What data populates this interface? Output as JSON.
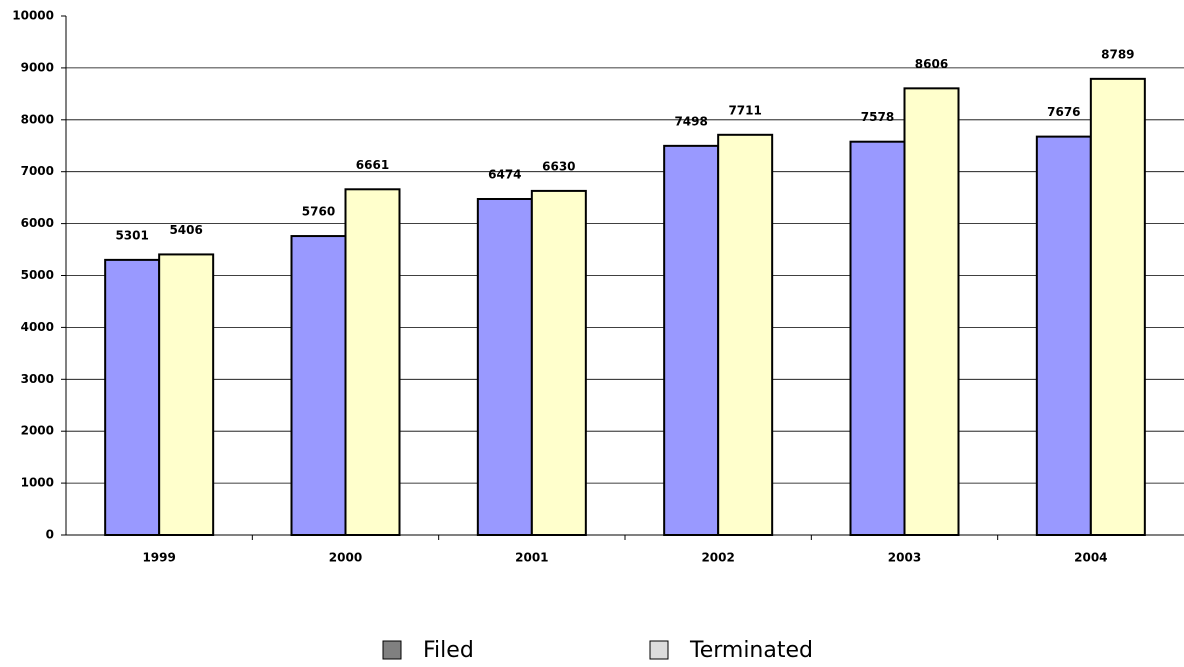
{
  "chart_data": {
    "type": "bar",
    "categories": [
      "1999",
      "2000",
      "2001",
      "2002",
      "2003",
      "2004"
    ],
    "series": [
      {
        "name": "Filed",
        "color": "#9999ff",
        "legend_color": "#808080",
        "values": [
          5301,
          5760,
          6474,
          7498,
          7578,
          7676
        ]
      },
      {
        "name": "Terminated",
        "color": "#ffffcc",
        "legend_color": "#dddddd",
        "values": [
          5406,
          6661,
          6630,
          7711,
          8606,
          8789
        ]
      }
    ],
    "ylim": [
      0,
      10000
    ],
    "yticks": [
      0,
      1000,
      2000,
      3000,
      4000,
      5000,
      6000,
      7000,
      8000,
      9000,
      10000
    ],
    "grid": true,
    "legend": "bottom"
  }
}
